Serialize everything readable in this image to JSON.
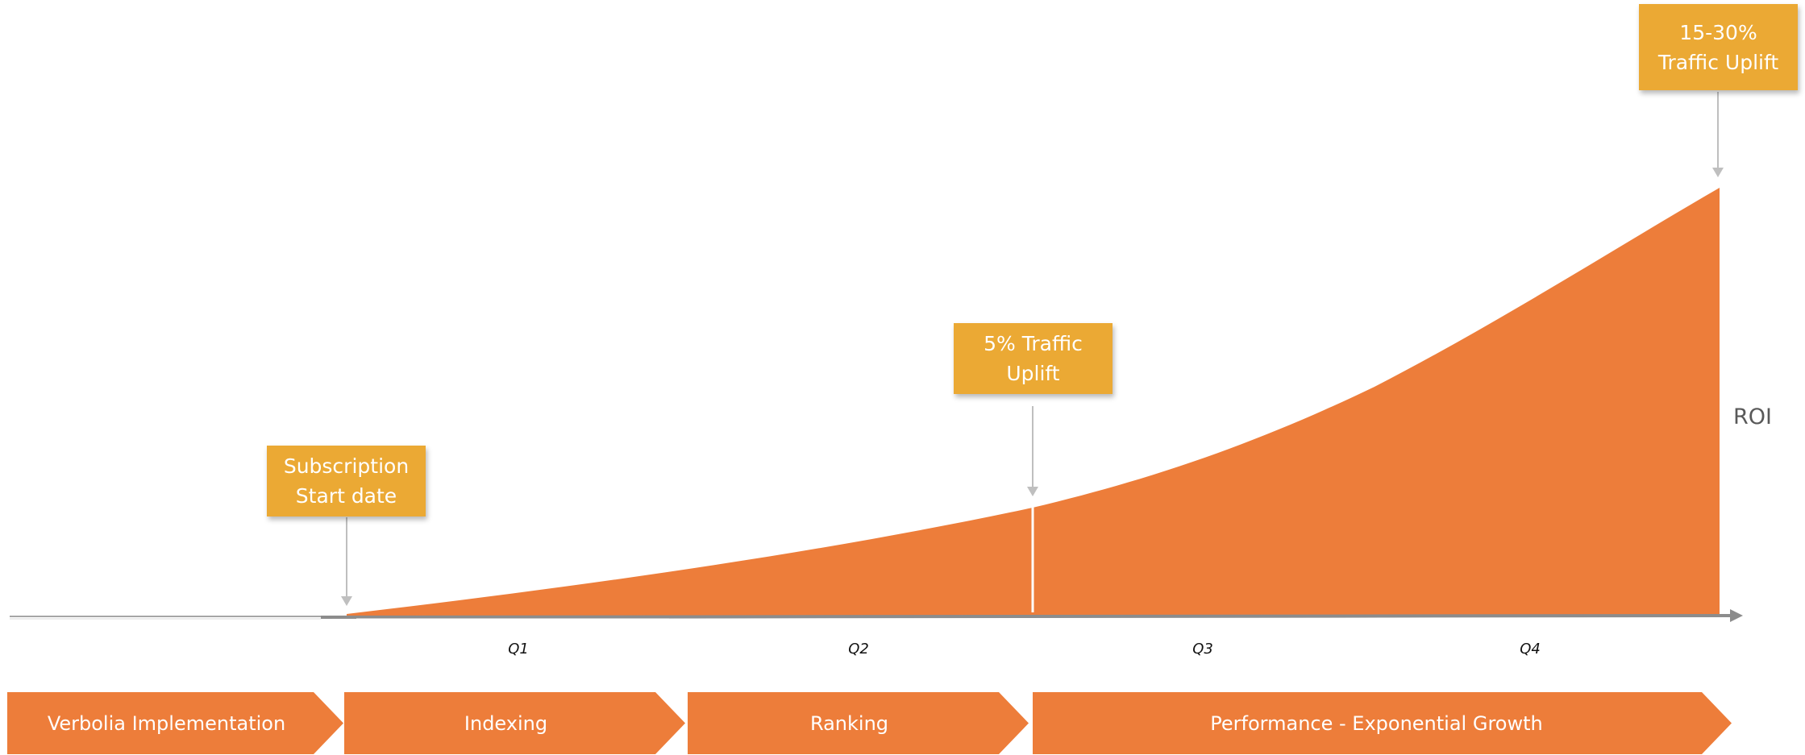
{
  "diagram": {
    "colors": {
      "area_fill": "#ED7D3A",
      "callout_fill": "#EBA934",
      "phase_fill": "#ED7D3A",
      "axis": "#8C8C8C",
      "pointer_arrow": "#BFBFBF",
      "text_dark": "#595959"
    },
    "callouts": {
      "subscription_start": {
        "line1": "Subscription",
        "line2": "Start date"
      },
      "five_percent": {
        "line1": "5% Traffic",
        "line2": "Uplift"
      },
      "fifteen_thirty": {
        "line1": "15-30%",
        "line2": "Traffic Uplift"
      }
    },
    "axis_label": "ROI",
    "quarters": [
      "Q1",
      "Q2",
      "Q3",
      "Q4"
    ],
    "phases": [
      "Verbolia Implementation",
      "Indexing",
      "Ranking",
      "Performance - Exponential Growth"
    ],
    "icons": {
      "axis_arrow": "arrow-right-icon",
      "pointer": "arrow-down-icon"
    }
  }
}
